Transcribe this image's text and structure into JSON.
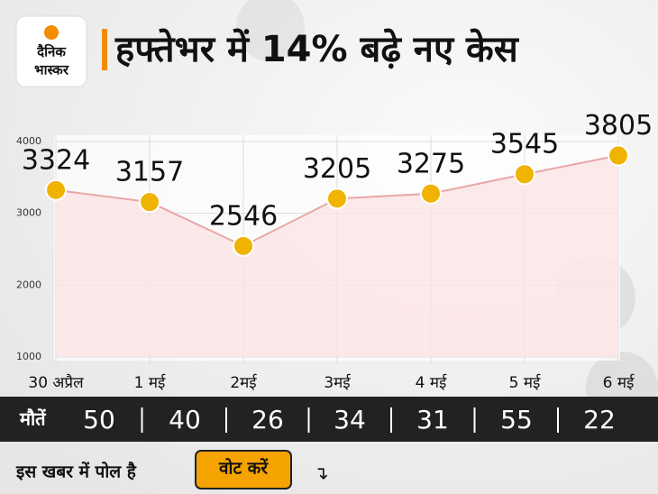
{
  "logo": {
    "line1": "दैनिक",
    "line2": "भास्कर"
  },
  "chart_data": {
    "type": "line",
    "title": "हफ्तेभर में 14% बढ़े नए केस",
    "categories": [
      "30 अप्रैल",
      "1 मई",
      "2मई",
      "3मई",
      "4 मई",
      "5 मई",
      "6 मई"
    ],
    "values": [
      3324,
      3157,
      2546,
      3205,
      3275,
      3545,
      3805
    ],
    "color": "#f0b400",
    "line_color": "#e9a7a7",
    "area_color": "#fbe3e3",
    "ylim": [
      1000,
      4000
    ],
    "yticks": [
      1000,
      2000,
      3000,
      4000
    ],
    "grid": true
  },
  "deaths_row": {
    "label": "मौतें",
    "values": [
      50,
      40,
      26,
      34,
      31,
      55,
      22
    ]
  },
  "poll": {
    "text": "इस खबर में पोल है",
    "button": "वोट करें"
  }
}
